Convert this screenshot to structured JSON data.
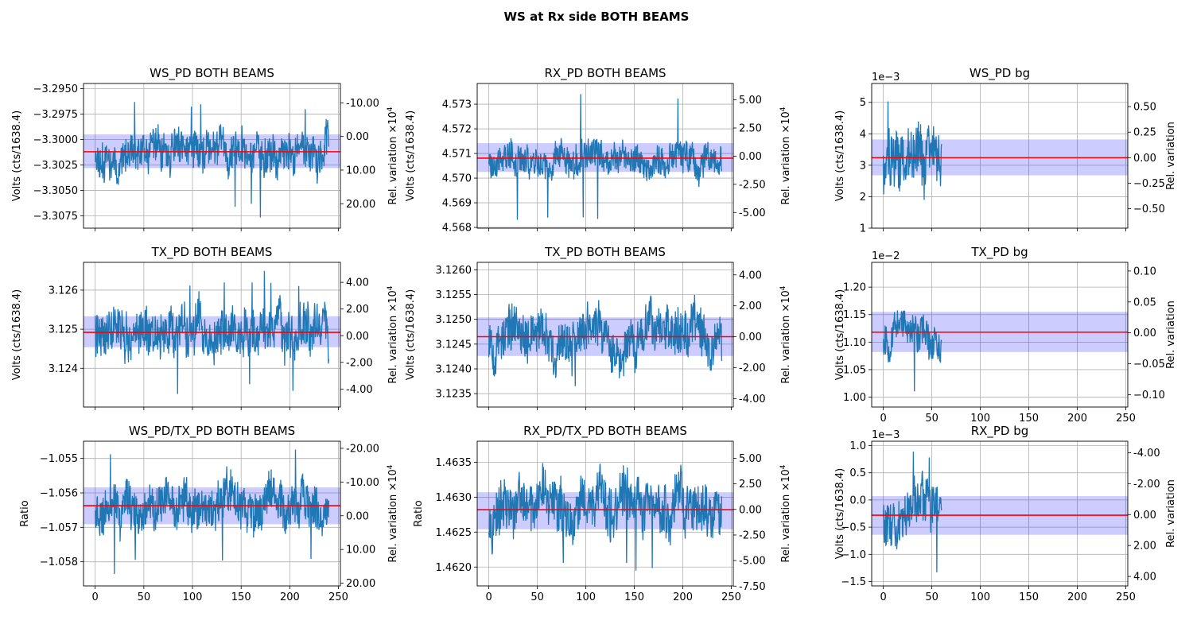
{
  "figure": {
    "suptitle": "WS at Rx side BOTH BEAMS"
  },
  "colors": {
    "signal": "#1f77b4",
    "mean_line": "#ff0000",
    "band": "#0000ff",
    "grid": "#b0b0b0"
  },
  "chart_data": [
    {
      "type": "line",
      "title": "WS_PD BOTH BEAMS",
      "ylabel": "Volts (cts/1638.4)",
      "y2label": "Rel. variation ×10",
      "y2_exponent": "4",
      "xlim": [
        -12,
        252
      ],
      "ylim": [
        -3.3087,
        -3.2945
      ],
      "y2lim": [
        -15.76,
        27.27
      ],
      "y2_inverted": true,
      "x_ticks": [
        0,
        50,
        100,
        150,
        200,
        250
      ],
      "x_ticklabels": [],
      "y_ticks": [
        -3.295,
        -3.2975,
        -3.3,
        -3.3025,
        -3.305,
        -3.3075
      ],
      "y_ticklabels": [
        "−3.2950",
        "−3.2975",
        "−3.3000",
        "−3.3025",
        "−3.3050",
        "−3.3075"
      ],
      "y2_ticks": [
        -10,
        0,
        10,
        20
      ],
      "y2_ticklabels": [
        "-10.00",
        "0.00",
        "10.00",
        "20.00"
      ],
      "mean": -3.3012,
      "band": [
        -3.3028,
        -3.2995
      ],
      "series": {
        "x_start": 0,
        "x_end": 240,
        "base": -3.3012,
        "amp": 0.0018,
        "lo": -3.3079,
        "hi": -3.2958,
        "seed": 11
      }
    },
    {
      "type": "line",
      "title": "RX_PD BOTH BEAMS",
      "ylabel": "Volts (cts/1638.4)",
      "y2label": "Rel. variation ×10",
      "y2_exponent": "4",
      "xlim": [
        -12,
        252
      ],
      "ylim": [
        4.56797,
        4.57384
      ],
      "y2lim": [
        -6.39,
        6.45
      ],
      "y2_inverted": false,
      "x_ticks": [
        0,
        50,
        100,
        150,
        200,
        250
      ],
      "x_ticklabels": [],
      "y_ticks": [
        4.568,
        4.569,
        4.57,
        4.571,
        4.572,
        4.573
      ],
      "y_ticklabels": [
        "4.568",
        "4.569",
        "4.570",
        "4.571",
        "4.572",
        "4.573"
      ],
      "y2_ticks": [
        -5,
        -2.5,
        0,
        2.5,
        5
      ],
      "y2_ticklabels": [
        "-5.00",
        "-2.50",
        "0.00",
        "2.50",
        "5.00"
      ],
      "mean": 4.57081,
      "band": [
        4.57025,
        4.57142
      ],
      "series": {
        "x_start": 0,
        "x_end": 240,
        "base": 4.5708,
        "amp": 0.0006,
        "lo": 4.5683,
        "hi": 4.5735,
        "seed": 23
      }
    },
    {
      "type": "line",
      "title": "WS_PD bg",
      "ylabel": "Volts (cts/1638.4)",
      "y2label": "Rel. variation",
      "y2_exponent": "",
      "y_offset_text": "1e−3",
      "xlim": [
        -12,
        252
      ],
      "ylim": [
        1.0,
        5.6
      ],
      "y2lim": [
        -0.691,
        0.727
      ],
      "y2_inverted": false,
      "x_ticks": [
        0,
        50,
        100,
        150,
        200,
        250
      ],
      "x_ticklabels": [],
      "y_ticks": [
        1,
        2,
        3,
        4,
        5
      ],
      "y_ticklabels": [
        "1",
        "2",
        "3",
        "4",
        "5"
      ],
      "y2_ticks": [
        -0.5,
        -0.25,
        0,
        0.25,
        0.5
      ],
      "y2_ticklabels": [
        "−0.50",
        "−0.25",
        "0.00",
        "0.25",
        "0.50"
      ],
      "mean": 3.24,
      "band": [
        2.68,
        3.82
      ],
      "series": {
        "x_start": 0,
        "x_end": 60,
        "base": 3.2,
        "amp": 0.9,
        "lo": 1.25,
        "hi": 5.35,
        "seed": 37
      }
    },
    {
      "type": "line",
      "title": "TX_PD BOTH BEAMS",
      "ylabel": "Volts (cts/1638.4)",
      "y2label": "Rel. variation ×10",
      "y2_exponent": "4",
      "xlim": [
        -12,
        252
      ],
      "ylim": [
        3.12301,
        3.12671
      ],
      "y2lim": [
        -5.35,
        5.5
      ],
      "y2_inverted": false,
      "x_ticks": [
        0,
        50,
        100,
        150,
        200,
        250
      ],
      "x_ticklabels": [],
      "y_ticks": [
        3.124,
        3.125,
        3.126
      ],
      "y_ticklabels": [
        "3.124",
        "3.125",
        "3.126"
      ],
      "y2_ticks": [
        -4,
        -2,
        0,
        2,
        4
      ],
      "y2_ticklabels": [
        "-4.00",
        "-2.00",
        "0.00",
        "2.00",
        "4.00"
      ],
      "mean": 3.12492,
      "band": [
        3.12454,
        3.12533
      ],
      "series": {
        "x_start": 0,
        "x_end": 240,
        "base": 3.1249,
        "amp": 0.00055,
        "lo": 3.1233,
        "hi": 3.1265,
        "seed": 41
      }
    },
    {
      "type": "line",
      "title": "TX_PD BOTH BEAMS",
      "ylabel": "Volts (cts/1638.4)",
      "y2label": "Rel. variation ×10",
      "y2_exponent": "4",
      "xlim": [
        -12,
        252
      ],
      "ylim": [
        3.12323,
        3.12615
      ],
      "y2lim": [
        -4.54,
        4.81
      ],
      "y2_inverted": false,
      "x_ticks": [
        0,
        50,
        100,
        150,
        200,
        250
      ],
      "x_ticklabels": [],
      "y_ticks": [
        3.1235,
        3.124,
        3.1245,
        3.125,
        3.1255,
        3.126
      ],
      "y_ticklabels": [
        "3.1235",
        "3.1240",
        "3.1245",
        "3.1250",
        "3.1255",
        "3.1260"
      ],
      "y2_ticks": [
        -4,
        -2,
        0,
        2,
        4
      ],
      "y2_ticklabels": [
        "-4.00",
        "-2.00",
        "0.00",
        "2.00",
        "4.00"
      ],
      "mean": 3.12465,
      "band": [
        3.12426,
        3.12504
      ],
      "series": {
        "x_start": 0,
        "x_end": 240,
        "base": 3.12465,
        "amp": 0.00045,
        "lo": 3.12337,
        "hi": 3.12598,
        "seed": 53
      }
    },
    {
      "type": "line",
      "title": "TX_PD bg",
      "ylabel": "Volts (cts/1638.4)",
      "y2label": "Rel. variation",
      "y2_exponent": "",
      "y_offset_text": "1e−2",
      "xlim": [
        -12,
        252
      ],
      "ylim": [
        0.982,
        1.245
      ],
      "y2lim": [
        -0.12,
        0.114
      ],
      "y2_inverted": false,
      "x_ticks": [
        0,
        50,
        100,
        150,
        200,
        250
      ],
      "x_ticklabels": [
        "0",
        "50",
        "100",
        "150",
        "200",
        "250"
      ],
      "y_ticks": [
        1.0,
        1.05,
        1.1,
        1.15,
        1.2
      ],
      "y_ticklabels": [
        "1.00",
        "1.05",
        "1.10",
        "1.15",
        "1.20"
      ],
      "y2_ticks": [
        -0.1,
        -0.05,
        0,
        0.05,
        0.1
      ],
      "y2_ticklabels": [
        "−0.10",
        "−0.05",
        "0.00",
        "0.05",
        "0.10"
      ],
      "mean": 1.118,
      "band": [
        1.082,
        1.155
      ],
      "series": {
        "x_start": 0,
        "x_end": 60,
        "base": 1.118,
        "amp": 0.03,
        "lo": 0.99,
        "hi": 1.235,
        "seed": 67
      }
    },
    {
      "type": "line",
      "title": "WS_PD/TX_PD BOTH BEAMS",
      "ylabel": "Ratio",
      "y2label": "Rel. variation ×10",
      "y2_exponent": "4",
      "xlim": [
        -12,
        252
      ],
      "ylim": [
        -1.0587,
        -1.0545
      ],
      "y2lim": [
        -22.1,
        20.8
      ],
      "y2_inverted": true,
      "x_ticks": [
        0,
        50,
        100,
        150,
        200,
        250
      ],
      "x_ticklabels": [
        "0",
        "50",
        "100",
        "150",
        "200",
        "250"
      ],
      "y_ticks": [
        -1.055,
        -1.056,
        -1.057,
        -1.058
      ],
      "y_ticklabels": [
        "−1.055",
        "−1.056",
        "−1.057",
        "−1.058"
      ],
      "y2_ticks": [
        -20,
        -10,
        0,
        10,
        20
      ],
      "y2_ticklabels": [
        "-20.00",
        "-10.00",
        "0.00",
        "10.00",
        "20.00"
      ],
      "mean": -1.05637,
      "band": [
        -1.05691,
        -1.05584
      ],
      "series": {
        "x_start": 0,
        "x_end": 240,
        "base": -1.05637,
        "amp": 0.00062,
        "lo": -1.05843,
        "hi": -1.0547,
        "seed": 79
      }
    },
    {
      "type": "line",
      "title": "RX_PD/TX_PD BOTH BEAMS",
      "ylabel": "Ratio",
      "y2label": "Rel. variation ×10",
      "y2_exponent": "4",
      "xlim": [
        -12,
        252
      ],
      "ylim": [
        1.46173,
        1.4638
      ],
      "y2lim": [
        -7.48,
        6.67
      ],
      "y2_inverted": false,
      "x_ticks": [
        0,
        50,
        100,
        150,
        200,
        250
      ],
      "x_ticklabels": [
        "0",
        "50",
        "100",
        "150",
        "200",
        "250"
      ],
      "y_ticks": [
        1.462,
        1.4625,
        1.463,
        1.4635
      ],
      "y_ticklabels": [
        "1.4620",
        "1.4625",
        "1.4630",
        "1.4635"
      ],
      "y2_ticks": [
        -7.5,
        -5,
        -2.5,
        0,
        2.5,
        5
      ],
      "y2_ticklabels": [
        "-7.50",
        "-5.00",
        "-2.50",
        "0.00",
        "2.50",
        "5.00"
      ],
      "mean": 1.46282,
      "band": [
        1.46254,
        1.46307
      ],
      "series": {
        "x_start": 0,
        "x_end": 240,
        "base": 1.46282,
        "amp": 0.00035,
        "lo": 1.46182,
        "hi": 1.46374,
        "seed": 97
      }
    },
    {
      "type": "line",
      "title": "RX_PD bg",
      "ylabel": "Volts (cts/1638.4)",
      "y2label": "Rel. variation",
      "y2_exponent": "",
      "y_offset_text": "1e−3",
      "xlim": [
        -12,
        252
      ],
      "ylim": [
        -1.58,
        1.08
      ],
      "y2lim": [
        -4.74,
        4.61
      ],
      "y2_inverted": true,
      "x_ticks": [
        0,
        50,
        100,
        150,
        200,
        250
      ],
      "x_ticklabels": [
        "0",
        "50",
        "100",
        "150",
        "200",
        "250"
      ],
      "y_ticks": [
        -1.5,
        -1.0,
        -0.5,
        0.0,
        0.5,
        1.0
      ],
      "y_ticklabels": [
        "−1.5",
        "−1.0",
        "−0.5",
        "0.0",
        "0.5",
        "1.0"
      ],
      "y2_ticks": [
        -4,
        -2,
        0,
        2,
        4
      ],
      "y2_ticklabels": [
        "-4.00",
        "-2.00",
        "0.00",
        "2.00",
        "4.00"
      ],
      "mean": -0.28,
      "band": [
        -0.64,
        0.07
      ],
      "series": {
        "x_start": 0,
        "x_end": 60,
        "base": -0.28,
        "amp": 0.42,
        "lo": -1.42,
        "hi": 0.97,
        "seed": 113
      }
    }
  ]
}
